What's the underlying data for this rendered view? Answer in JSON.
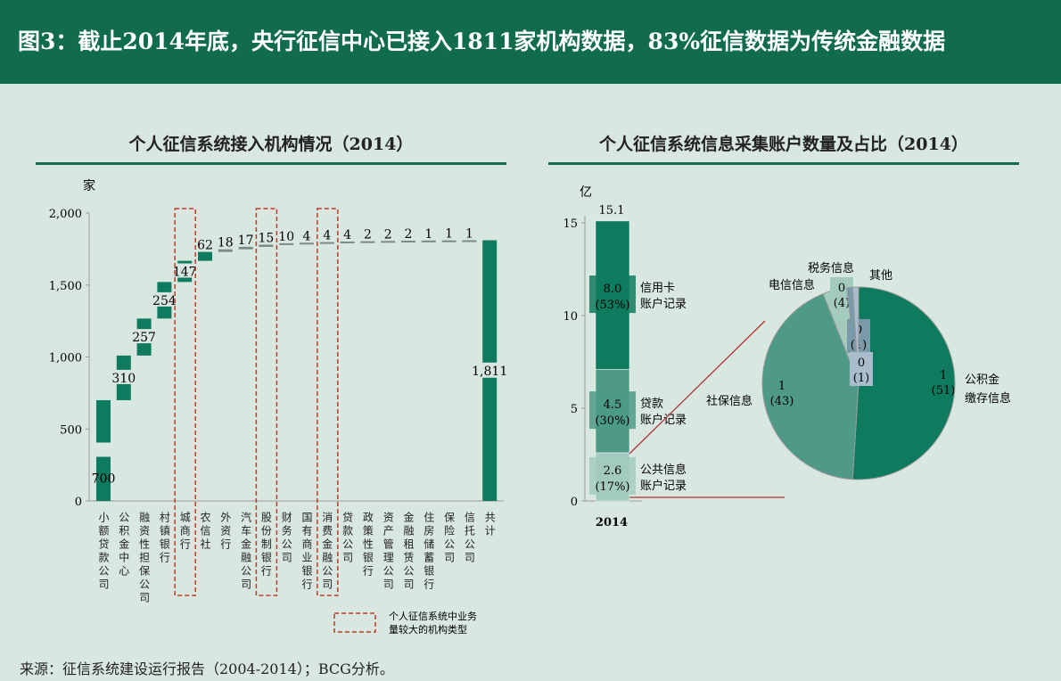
{
  "header": {
    "title": "图3：截止2014年底，央行征信中心已接入1811家机构数据，83%征信数据为传统金融数据"
  },
  "colors": {
    "primary": "#106b4f",
    "bar": "#0e7a5e",
    "highlight_box": "#c0392b"
  },
  "chart_data": [
    {
      "type": "bar",
      "subtype": "waterfall",
      "title": "个人征信系统接入机构情况（2014）",
      "ylabel": "家",
      "ylim": [
        0,
        2000
      ],
      "yticks": [
        "0",
        "500",
        "1,000",
        "1,500",
        "2,000"
      ],
      "categories": [
        "小额贷款公司",
        "公积金中心",
        "融资性担保公司",
        "村镇银行",
        "城商行",
        "农信社",
        "外资行",
        "汽车金融公司",
        "股份制银行",
        "财务公司",
        "国有商业银行",
        "消费金融公司",
        "贷款公司",
        "政策性银行",
        "资产管理公司",
        "金融租赁公司",
        "住房储蓄银行",
        "保险公司",
        "信托公司",
        "共计"
      ],
      "values": [
        700,
        310,
        257,
        254,
        147,
        62,
        18,
        17,
        15,
        10,
        4,
        4,
        4,
        2,
        2,
        2,
        1,
        1,
        1,
        1811
      ],
      "labels": [
        "700",
        "310",
        "257",
        "254",
        "147",
        "62",
        "18",
        "17",
        "15",
        "10",
        "4",
        "4",
        "4",
        "2",
        "2",
        "2",
        "1",
        "1",
        "1",
        "1,811"
      ],
      "highlighted": [
        "城商行",
        "股份制银行",
        "消费金融公司"
      ],
      "legend": "个人征信系统中业务量较大的机构类型"
    },
    {
      "type": "bar",
      "subtype": "stacked",
      "title": "个人征信系统信息采集账户数量及占比（2014）",
      "ylabel": "亿",
      "ylim": [
        0,
        15
      ],
      "yticks": [
        "0",
        "5",
        "10",
        "15"
      ],
      "categories": [
        "2014"
      ],
      "total": "15.1",
      "series": [
        {
          "name": "公共信息账户记录",
          "value": 2.6,
          "label": "2.6",
          "pct": "(17%)",
          "color": "#a3cbbd"
        },
        {
          "name": "贷款账户记录",
          "value": 4.5,
          "label": "4.5",
          "pct": "(30%)",
          "color": "#4e9a86"
        },
        {
          "name": "信用卡账户记录",
          "value": 8.0,
          "label": "8.0",
          "pct": "(53%)",
          "color": "#0e7a5e"
        }
      ]
    },
    {
      "type": "pie",
      "breakdown_of": "公共信息账户记录",
      "slices": [
        {
          "name": "公积金缴存信息",
          "value": 51,
          "label": "1",
          "pct": "(51)",
          "color": "#0e7a5e"
        },
        {
          "name": "社保信息",
          "value": 43,
          "label": "1",
          "pct": "(43)",
          "color": "#4e9a86"
        },
        {
          "name": "电信信息",
          "value": 4,
          "label": "0",
          "pct": "(4)",
          "color": "#a3cbbd"
        },
        {
          "name": "税务信息",
          "value": 1,
          "label": "0",
          "pct": "(1)",
          "color": "#7a9aaa"
        },
        {
          "name": "其他",
          "value": 1,
          "label": "0",
          "pct": "(1)",
          "color": "#a9bccb"
        }
      ]
    }
  ],
  "source": "来源：征信系统建设运行报告（2004-2014）；BCG分析。"
}
